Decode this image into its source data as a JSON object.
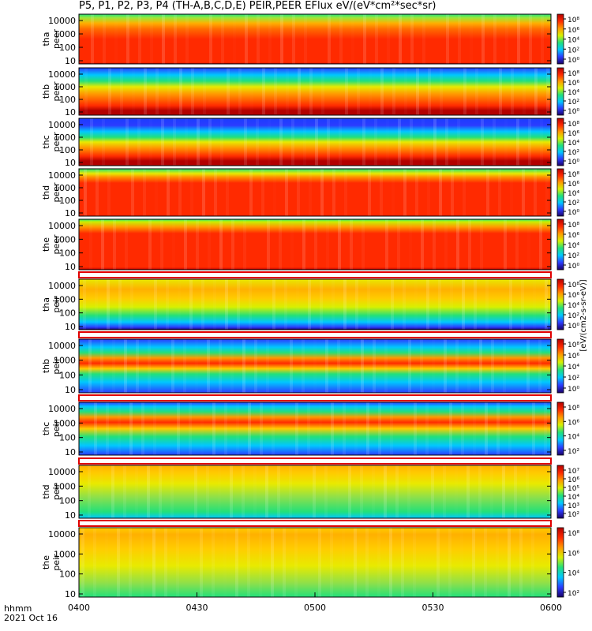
{
  "title": "P5, P1, P2, P3, P4 (TH-A,B,C,D,E) PEIR,PEER EFlux eV/(eV*cm²*sec*sr)",
  "footer": {
    "hhmm_label": "hhmm",
    "date_label": "2021 Oct 16"
  },
  "chart_data": {
    "type": "heatmap",
    "x_ticks": [
      "0400",
      "0430",
      "0500",
      "0530",
      "0600"
    ],
    "y_tick_labels": [
      "10",
      "100",
      "1000",
      "10000"
    ],
    "y_scale": "log",
    "colorbar_unit_label": "[eV/(cm2-s-sr-eV)]",
    "panels": [
      {
        "ylabel_top": "tha",
        "ylabel_bottom": "peer",
        "colorbar_ticks": [
          "10⁸",
          "10⁶",
          "10⁴",
          "10²",
          "10⁰"
        ],
        "profile": "peer_a"
      },
      {
        "ylabel_top": "thb",
        "ylabel_bottom": "peer",
        "colorbar_ticks": [
          "10⁸",
          "10⁶",
          "10⁴",
          "10²",
          "10⁰"
        ],
        "profile": "peer_b"
      },
      {
        "ylabel_top": "thc",
        "ylabel_bottom": "peer",
        "colorbar_ticks": [
          "10⁸",
          "10⁶",
          "10⁴",
          "10²",
          "10⁰"
        ],
        "profile": "peer_c"
      },
      {
        "ylabel_top": "thd",
        "ylabel_bottom": "peer",
        "colorbar_ticks": [
          "10⁸",
          "10⁶",
          "10⁴",
          "10²",
          "10⁰"
        ],
        "profile": "peer_d"
      },
      {
        "ylabel_top": "the",
        "ylabel_bottom": "peer",
        "colorbar_ticks": [
          "10⁸",
          "10⁶",
          "10⁴",
          "10²",
          "10⁰"
        ],
        "profile": "peer_e"
      },
      {
        "ylabel_top": "tha",
        "ylabel_bottom": "peir",
        "colorbar_ticks": [
          "10⁸",
          "10⁶",
          "10⁴",
          "10²",
          "10⁰"
        ],
        "profile": "peir_a"
      },
      {
        "ylabel_top": "thb",
        "ylabel_bottom": "peir",
        "colorbar_ticks": [
          "10⁸",
          "10⁶",
          "10⁴",
          "10²",
          "10⁰"
        ],
        "profile": "peir_b"
      },
      {
        "ylabel_top": "thc",
        "ylabel_bottom": "peir",
        "colorbar_ticks": [
          "10⁸",
          "10⁶",
          "10⁴",
          "10²"
        ],
        "profile": "peir_c"
      },
      {
        "ylabel_top": "thd",
        "ylabel_bottom": "peir",
        "colorbar_ticks": [
          "10⁷",
          "10⁶",
          "10⁵",
          "10⁴",
          "10³",
          "10²"
        ],
        "profile": "peir_d"
      },
      {
        "ylabel_top": "the",
        "ylabel_bottom": "peir",
        "colorbar_ticks": [
          "10⁸",
          "10⁶",
          "10⁴",
          "10²"
        ],
        "profile": "peir_e"
      }
    ],
    "colormap": [
      "#1a0066",
      "#2b3cff",
      "#00c8ff",
      "#22e07a",
      "#d8f000",
      "#ff9a00",
      "#ff2a00",
      "#b30000"
    ],
    "grid": false
  }
}
